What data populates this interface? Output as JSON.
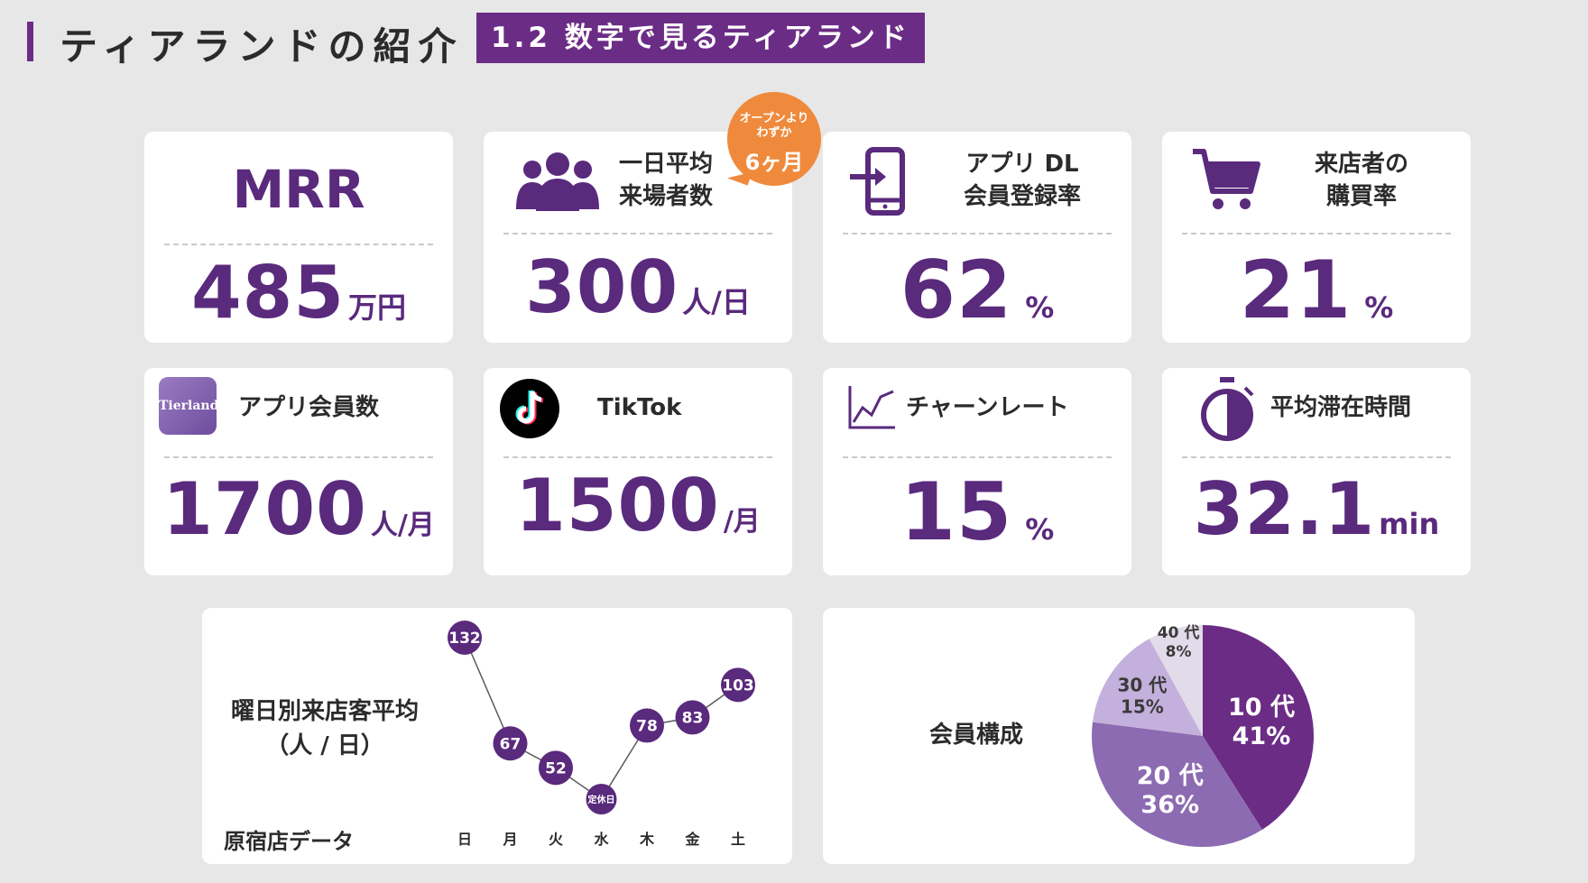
{
  "header": {
    "title": "ティアランドの紹介",
    "subtitle": "1.2 数字で見るティアランド"
  },
  "cards": {
    "mrr": {
      "title": "MRR",
      "value": "485",
      "unit": "万円"
    },
    "visitors": {
      "label_line1": "一日平均",
      "label_line2": "来場者数",
      "value": "300",
      "unit": "人/日",
      "badge_line1": "オープンより",
      "badge_line2": "わずか",
      "badge_big": "6ヶ月"
    },
    "app_dl": {
      "label_line1": "アプリ DL",
      "label_line2": "会員登録率",
      "value": "62",
      "unit": "%"
    },
    "purchase": {
      "label_line1": "来店者の",
      "label_line2": "購買率",
      "value": "21",
      "unit": "%"
    },
    "members": {
      "label": "アプリ会員数",
      "app_name": "Tierland",
      "value": "1700",
      "unit": "人/月"
    },
    "tiktok": {
      "label": "TikTok",
      "value": "1500",
      "unit": "/月"
    },
    "churn": {
      "label": "チャーンレート",
      "value": "15",
      "unit": "%"
    },
    "stay": {
      "label": "平均滞在時間",
      "value": "32.1",
      "unit": "min"
    }
  },
  "weekly": {
    "title_line1": "曜日別来店客平均",
    "title_line2": "（人 / 日）",
    "footer": "原宿店データ",
    "closed_label": "定休日"
  },
  "composition": {
    "title": "会員構成"
  },
  "colors": {
    "primary": "#5a2a7d",
    "header": "#6b2c86",
    "badge": "#ef8a3c"
  },
  "chart_data": [
    {
      "type": "line",
      "categories": [
        "日",
        "月",
        "火",
        "水",
        "木",
        "金",
        "土"
      ],
      "values": [
        132,
        67,
        52,
        null,
        78,
        83,
        103
      ],
      "annotations": [
        {
          "category": "水",
          "text": "定休日"
        }
      ]
    },
    {
      "type": "pie",
      "slices": [
        {
          "label": "10 代",
          "value": 41,
          "color": "#6b2c86"
        },
        {
          "label": "20 代",
          "value": 36,
          "color": "#8c6bb2"
        },
        {
          "label": "30 代",
          "value": 15,
          "color": "#c4b0dc"
        },
        {
          "label": "40 代",
          "value": 8,
          "color": "#e2dbe9"
        }
      ]
    }
  ]
}
